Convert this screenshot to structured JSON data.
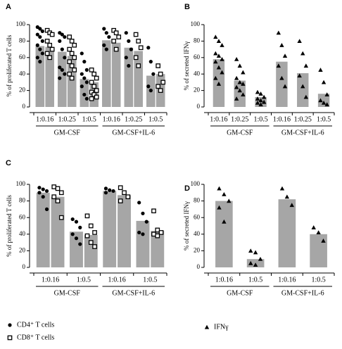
{
  "chart_data": [
    {
      "type": "bar",
      "panel": "A",
      "ylabel": "% of proliferated T cells",
      "ylim": [
        0,
        100
      ],
      "yticks": [
        0,
        20,
        40,
        60,
        80,
        100
      ],
      "color": "#a6a6a6",
      "groups": [
        {
          "name": "GM-CSF",
          "categories": [
            "1:0.16",
            "1:0.25",
            "1:0.5"
          ]
        },
        {
          "name": "GM-CSF+IL-6",
          "categories": [
            "1:0.16",
            "1:0.25",
            "1:0.5"
          ]
        }
      ],
      "series": [
        {
          "marker": "circle",
          "values": [
            74,
            67,
            34,
            81,
            72,
            38
          ],
          "points": [
            [
              97,
              95,
              92,
              88,
              85,
              80,
              75,
              70,
              65,
              60,
              55
            ],
            [
              90,
              88,
              85,
              80,
              70,
              60,
              48,
              45,
              40,
              35
            ],
            [
              65,
              55,
              45,
              40,
              35,
              30,
              25,
              15,
              10
            ],
            [
              95,
              90,
              85,
              75,
              70
            ],
            [
              90,
              80,
              70,
              60,
              50
            ],
            [
              72,
              55,
              40,
              25,
              20
            ]
          ]
        },
        {
          "marker": "square",
          "values": [
            73,
            62,
            30,
            78,
            68,
            40
          ],
          "points": [
            [
              93,
              90,
              88,
              80,
              75,
              70,
              65,
              60
            ],
            [
              85,
              80,
              75,
              70,
              65,
              60,
              55,
              50,
              45,
              40,
              35
            ],
            [
              45,
              40,
              35,
              30,
              25,
              20,
              18,
              15,
              12,
              10
            ],
            [
              93,
              90,
              85,
              80,
              70
            ],
            [
              88,
              80,
              72,
              60,
              50
            ],
            [
              50,
              40,
              30,
              25,
              20
            ]
          ]
        }
      ]
    },
    {
      "type": "bar",
      "panel": "B",
      "ylabel": "% of secreted IFNγ",
      "ylim": [
        0,
        100
      ],
      "yticks": [
        0,
        20,
        40,
        60,
        80,
        100
      ],
      "color": "#a6a6a6",
      "groups": [
        {
          "name": "GM-CSF",
          "categories": [
            "1:0.16",
            "1:0.25",
            "1:0.5"
          ]
        },
        {
          "name": "GM-CSF+IL-6",
          "categories": [
            "1:0.16",
            "1:0.25",
            "1:0.5"
          ]
        }
      ],
      "series": [
        {
          "marker": "triangle",
          "values": [
            58,
            32,
            12,
            55,
            41,
            16
          ],
          "points": [
            [
              85,
              80,
              75,
              65,
              62,
              58,
              55,
              48,
              42,
              35,
              28
            ],
            [
              58,
              50,
              42,
              35,
              30,
              28,
              24,
              20,
              15,
              10
            ],
            [
              18,
              16,
              12,
              10,
              8,
              6,
              5,
              3
            ],
            [
              90,
              75,
              62,
              50,
              35,
              25
            ],
            [
              80,
              65,
              50,
              38,
              25,
              12
            ],
            [
              45,
              30,
              15,
              8,
              5,
              3
            ]
          ]
        }
      ]
    },
    {
      "type": "bar",
      "panel": "C",
      "ylabel": "% of proliferated T cells",
      "ylim": [
        0,
        100
      ],
      "yticks": [
        0,
        20,
        40,
        60,
        80,
        100
      ],
      "color": "#a6a6a6",
      "groups": [
        {
          "name": "GM-CSF",
          "categories": [
            "1:0.16",
            "1:0.5"
          ]
        },
        {
          "name": "GM-CSF+IL-6",
          "categories": [
            "1:0.16",
            "1:0.5"
          ]
        }
      ],
      "series": [
        {
          "marker": "circle",
          "values": [
            90,
            43,
            92,
            56
          ],
          "points": [
            [
              96,
              94,
              92,
              90,
              85,
              70
            ],
            [
              58,
              55,
              48,
              40,
              35,
              28
            ],
            [
              95,
              93,
              92,
              90
            ],
            [
              78,
              65,
              55,
              42,
              40
            ]
          ]
        },
        {
          "marker": "square",
          "values": [
            85,
            39,
            87,
            44
          ],
          "points": [
            [
              97,
              95,
              90,
              85,
              80,
              60
            ],
            [
              62,
              50,
              42,
              38,
              30,
              25
            ],
            [
              96,
              90,
              85,
              80
            ],
            [
              68,
              45,
              42,
              40,
              38
            ]
          ]
        }
      ]
    },
    {
      "type": "bar",
      "panel": "D",
      "ylabel": "% of secreted IFNγ",
      "ylim": [
        0,
        100
      ],
      "yticks": [
        0,
        20,
        40,
        60,
        80,
        100
      ],
      "color": "#a6a6a6",
      "groups": [
        {
          "name": "GM-CSF",
          "categories": [
            "1:0.16",
            "1:0.5"
          ]
        },
        {
          "name": "GM-CSF+IL-6",
          "categories": [
            "1:0.16",
            "1:0.5"
          ]
        }
      ],
      "series": [
        {
          "marker": "triangle",
          "values": [
            80,
            10,
            82,
            40
          ],
          "points": [
            [
              95,
              88,
              80,
              72,
              55
            ],
            [
              20,
              18,
              10,
              5,
              3
            ],
            [
              95,
              85,
              75
            ],
            [
              48,
              42,
              32
            ]
          ]
        }
      ]
    }
  ],
  "legend": [
    {
      "marker": "circle",
      "label": "CD4⁺ T cells"
    },
    {
      "marker": "square",
      "label": "CD8⁺ T cells"
    },
    {
      "marker": "triangle",
      "label": "IFNγ"
    }
  ]
}
